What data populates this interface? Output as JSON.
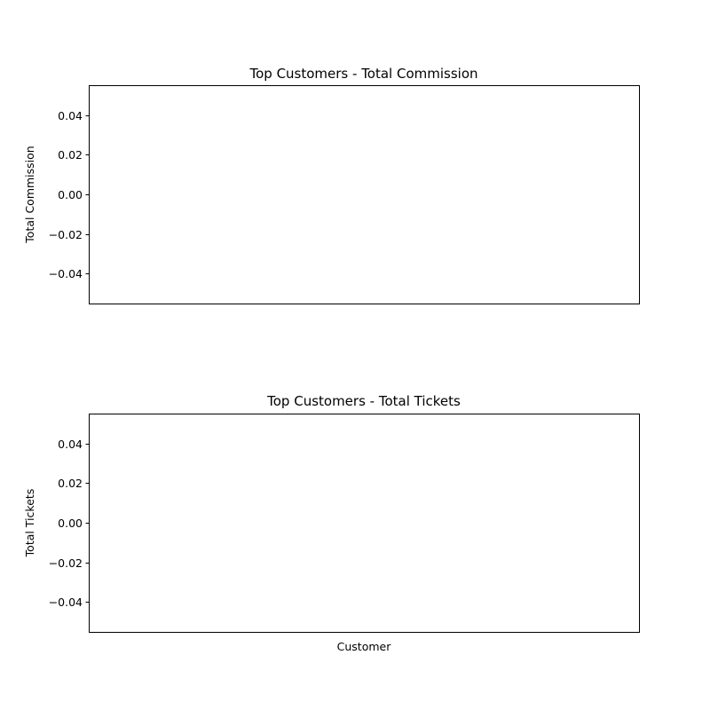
{
  "chart_data": [
    {
      "type": "bar",
      "title": "Top Customers - Total Commission",
      "xlabel": "",
      "ylabel": "Total Commission",
      "categories": [],
      "values": [],
      "ylim": [
        -0.055,
        0.055
      ],
      "yticks": [
        -0.04,
        -0.02,
        0.0,
        0.02,
        0.04
      ],
      "ytick_labels": [
        "−0.04",
        "−0.02",
        "0.00",
        "0.02",
        "0.04"
      ],
      "grid": false
    },
    {
      "type": "bar",
      "title": "Top Customers - Total Tickets",
      "xlabel": "Customer",
      "ylabel": "Total Tickets",
      "categories": [],
      "values": [],
      "ylim": [
        -0.055,
        0.055
      ],
      "yticks": [
        -0.04,
        -0.02,
        0.0,
        0.02,
        0.04
      ],
      "ytick_labels": [
        "−0.04",
        "−0.02",
        "0.00",
        "0.02",
        "0.04"
      ],
      "grid": false
    }
  ]
}
